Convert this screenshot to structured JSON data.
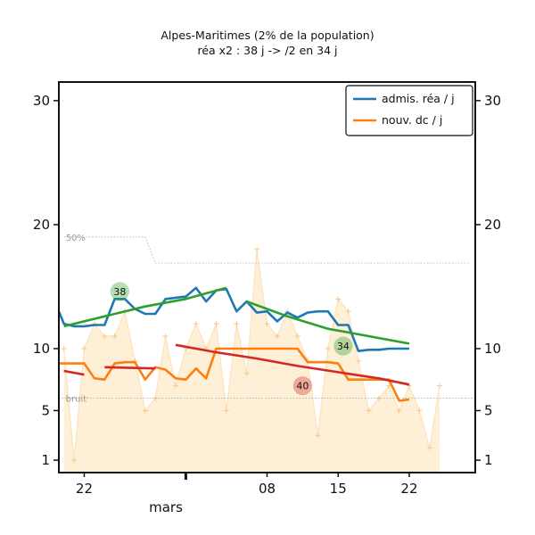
{
  "chart_data": {
    "type": "line",
    "title": "Alpes-Maritimes (2% de la population)",
    "subtitle": "réa x2 : 38 j -> /2 en 34 j",
    "xlabel": "mars",
    "x_ticks": [
      {
        "day": 22,
        "label": "22"
      },
      {
        "day": 32,
        "label": ""
      },
      {
        "day": 40,
        "label": "08"
      },
      {
        "day": 47,
        "label": "15"
      },
      {
        "day": 54,
        "label": "22"
      }
    ],
    "y_ticks": [
      1,
      5,
      10,
      20,
      30
    ],
    "ylim": [
      0,
      31.5
    ],
    "xlim": [
      19.5,
      60.5
    ],
    "series": [
      {
        "name": "admis. réa / j",
        "color": "#1f77b4",
        "x": [
          19.5,
          20,
          21,
          22,
          23,
          24,
          25,
          26,
          27,
          28,
          29,
          30,
          31,
          32,
          33,
          34,
          35,
          36,
          37,
          38,
          39,
          40,
          41,
          42,
          43,
          44,
          45,
          46,
          47,
          48,
          49,
          50,
          51,
          52,
          53,
          54
        ],
        "values": [
          13,
          12,
          11.8,
          11.8,
          11.9,
          11.9,
          14,
          14,
          13.2,
          12.8,
          12.8,
          14,
          14.1,
          14.2,
          14.9,
          13.8,
          14.7,
          14.8,
          13,
          13.8,
          12.9,
          13,
          12.2,
          12.9,
          12.5,
          12.9,
          13,
          13,
          11.9,
          11.9,
          9.8,
          9.9,
          9.9,
          10,
          10,
          10
        ]
      },
      {
        "name": "nouv. dc / j",
        "color": "#ff7f0e",
        "x": [
          19.5,
          20,
          21,
          22,
          23,
          24,
          25,
          26,
          27,
          28,
          29,
          30,
          31,
          32,
          33,
          34,
          35,
          36,
          37,
          38,
          39,
          40,
          41,
          42,
          43,
          44,
          45,
          46,
          47,
          48,
          49,
          50,
          51,
          52,
          53,
          54
        ],
        "values": [
          8.8,
          8.8,
          8.8,
          8.8,
          7.6,
          7.5,
          8.8,
          8.9,
          8.9,
          7.5,
          8.5,
          8.3,
          7.6,
          7.5,
          8.4,
          7.6,
          10,
          10,
          10,
          10,
          10,
          10,
          10,
          10,
          10,
          8.9,
          8.9,
          8.9,
          8.8,
          7.5,
          7.5,
          7.5,
          7.5,
          7.5,
          5.8,
          5.9
        ]
      }
    ],
    "fitted_trends": [
      {
        "label": "38",
        "color": "#2ca02c",
        "x": [
          20,
          24,
          28,
          32,
          36
        ],
        "values": [
          11.8,
          12.6,
          13.4,
          14.0,
          14.9
        ]
      },
      {
        "label": "34",
        "color": "#2ca02c",
        "x": [
          38,
          42,
          46,
          50,
          54
        ],
        "values": [
          13.8,
          12.6,
          11.6,
          11.0,
          10.4
        ]
      },
      {
        "label": "40",
        "color": "#d62728",
        "x": [
          31,
          35,
          39,
          43,
          47,
          51,
          54
        ],
        "values": [
          10.3,
          9.7,
          9.2,
          8.6,
          8.1,
          7.6,
          7.1
        ]
      },
      {
        "label": "",
        "color": "#d62728",
        "x": [
          20,
          22
        ],
        "values": [
          8.2,
          7.9
        ]
      },
      {
        "label": "",
        "color": "#d62728",
        "x": [
          24,
          29
        ],
        "values": [
          8.5,
          8.4
        ]
      }
    ],
    "bubble_labels": [
      {
        "text": "38",
        "color": "#2ca02c",
        "x": 25.5,
        "y": 14.6
      },
      {
        "text": "34",
        "color": "#2ca02c",
        "x": 47.5,
        "y": 10.2
      },
      {
        "text": "40",
        "color": "#d62728",
        "x": 43.5,
        "y": 7.0
      }
    ],
    "raw_area": {
      "color": "#fde9c9",
      "x": [
        20,
        21,
        22,
        23,
        24,
        25,
        26,
        27,
        28,
        29,
        30,
        31,
        32,
        33,
        34,
        35,
        36,
        37,
        38,
        39,
        40,
        41,
        42,
        43,
        44,
        45,
        46,
        47,
        48,
        49,
        50,
        51,
        52,
        53,
        54,
        55,
        56,
        57
      ],
      "values": [
        10,
        1,
        10,
        12,
        11,
        11,
        13,
        9,
        5,
        6,
        11,
        7,
        10,
        12,
        10,
        12,
        5,
        12,
        8,
        18,
        12,
        11,
        13,
        11,
        9,
        3,
        10,
        14,
        13,
        9,
        5,
        6,
        7,
        5,
        7,
        5,
        2,
        7
      ]
    },
    "threshold_50": {
      "label": "50%",
      "x": [
        20,
        28,
        29,
        60
      ],
      "values": [
        19,
        19,
        16.9,
        16.9
      ]
    },
    "threshold_bruit": {
      "label": "bruit",
      "y": 6
    }
  },
  "legend": [
    "admis. réa / j",
    "nouv. dc / j"
  ]
}
